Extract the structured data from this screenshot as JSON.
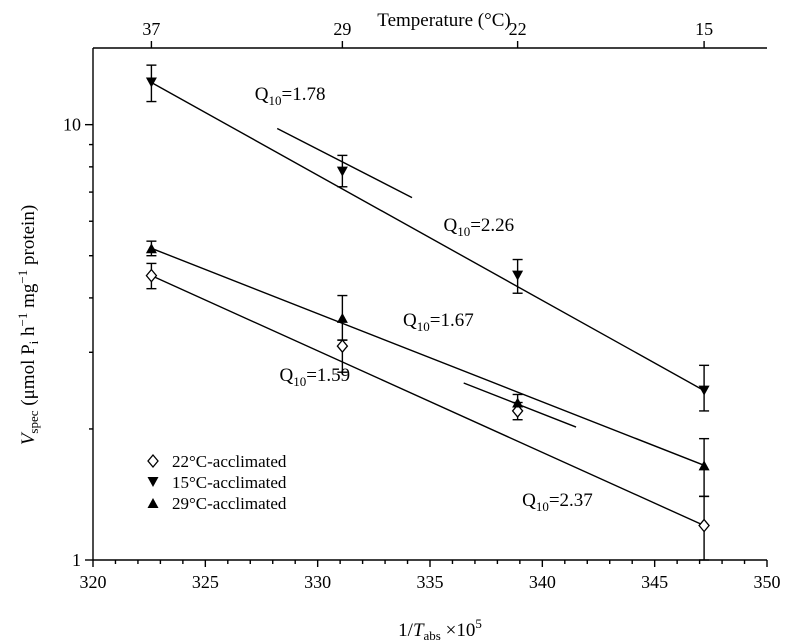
{
  "chart_data": {
    "type": "scatter",
    "title": "",
    "xlabel": "1/T_abs ×10^5",
    "xlabel_parts": {
      "pre": "1/",
      "italic": "T",
      "sub": "abs",
      "mid": " ×10",
      "sup": "5"
    },
    "ylabel_parts": {
      "italic": "V",
      "sub": "spec",
      "a": " (μmol P",
      "sub2": "i",
      "b": " h",
      "sup1": "−1",
      "c": " mg",
      "sup2": "−1",
      "d": " protein)"
    },
    "x2label": "Temperature (°C)",
    "x2_ticks": [
      {
        "label": "37",
        "x": 322.6
      },
      {
        "label": "29",
        "x": 331.1
      },
      {
        "label": "22",
        "x": 338.9
      },
      {
        "label": "15",
        "x": 347.2
      }
    ],
    "xlim": [
      320,
      350
    ],
    "xticks": [
      "320",
      "325",
      "330",
      "335",
      "340",
      "345",
      "350"
    ],
    "ylim": [
      1,
      15
    ],
    "yscale": "log",
    "yticks": [
      "1",
      "10"
    ],
    "legend_position": "bottom-left",
    "series": [
      {
        "name": "22°C-acclimated",
        "marker": "diamond-open",
        "points": [
          {
            "x": 322.6,
            "y": 4.5,
            "lo": 4.2,
            "hi": 4.8
          },
          {
            "x": 331.1,
            "y": 3.1,
            "lo": 2.7,
            "hi": 3.2
          },
          {
            "x": 338.9,
            "y": 2.2,
            "lo": 2.1,
            "hi": 2.3
          },
          {
            "x": 347.2,
            "y": 1.2,
            "lo": 1.0,
            "hi": 1.4
          }
        ]
      },
      {
        "name": "15°C-acclimated",
        "marker": "triangle-down",
        "points": [
          {
            "x": 322.6,
            "y": 12.5,
            "lo": 11.3,
            "hi": 13.7
          },
          {
            "x": 331.1,
            "y": 7.8,
            "lo": 7.2,
            "hi": 8.5
          },
          {
            "x": 338.9,
            "y": 4.5,
            "lo": 4.1,
            "hi": 4.9
          },
          {
            "x": 347.2,
            "y": 2.45,
            "lo": 2.2,
            "hi": 2.8
          }
        ]
      },
      {
        "name": "29°C-acclimated",
        "marker": "triangle-up",
        "points": [
          {
            "x": 322.6,
            "y": 5.2,
            "lo": 5.0,
            "hi": 5.4
          },
          {
            "x": 331.1,
            "y": 3.6,
            "lo": 3.2,
            "hi": 4.05
          },
          {
            "x": 338.9,
            "y": 2.3,
            "lo": 2.2,
            "hi": 2.4
          },
          {
            "x": 347.2,
            "y": 1.65,
            "lo": 1.4,
            "hi": 1.9
          }
        ]
      }
    ],
    "fit_lines": [
      {
        "x1": 322.6,
        "y1": 12.5,
        "x2": 347.2,
        "y2": 2.45
      },
      {
        "x1": 322.6,
        "y1": 5.2,
        "x2": 347.2,
        "y2": 1.65
      },
      {
        "x1": 322.6,
        "y1": 4.5,
        "x2": 347.2,
        "y2": 1.2
      },
      {
        "x1": 328.2,
        "y1": 9.8,
        "x2": 334.2,
        "y2": 6.8
      },
      {
        "x1": 336.5,
        "y1": 2.55,
        "x2": 341.5,
        "y2": 2.02
      }
    ],
    "annotations": [
      {
        "pre": "Q",
        "sub": "10",
        "post": "=1.78",
        "x": 327.2,
        "y": 11.4
      },
      {
        "pre": "Q",
        "sub": "10",
        "post": "=2.26",
        "x": 335.6,
        "y": 5.7
      },
      {
        "pre": "Q",
        "sub": "10",
        "post": "=1.67",
        "x": 333.8,
        "y": 3.45
      },
      {
        "pre": "Q",
        "sub": "10",
        "post": "=1.59",
        "x": 328.3,
        "y": 2.58
      },
      {
        "pre": "Q",
        "sub": "10",
        "post": "=2.37",
        "x": 339.1,
        "y": 1.33
      }
    ]
  }
}
